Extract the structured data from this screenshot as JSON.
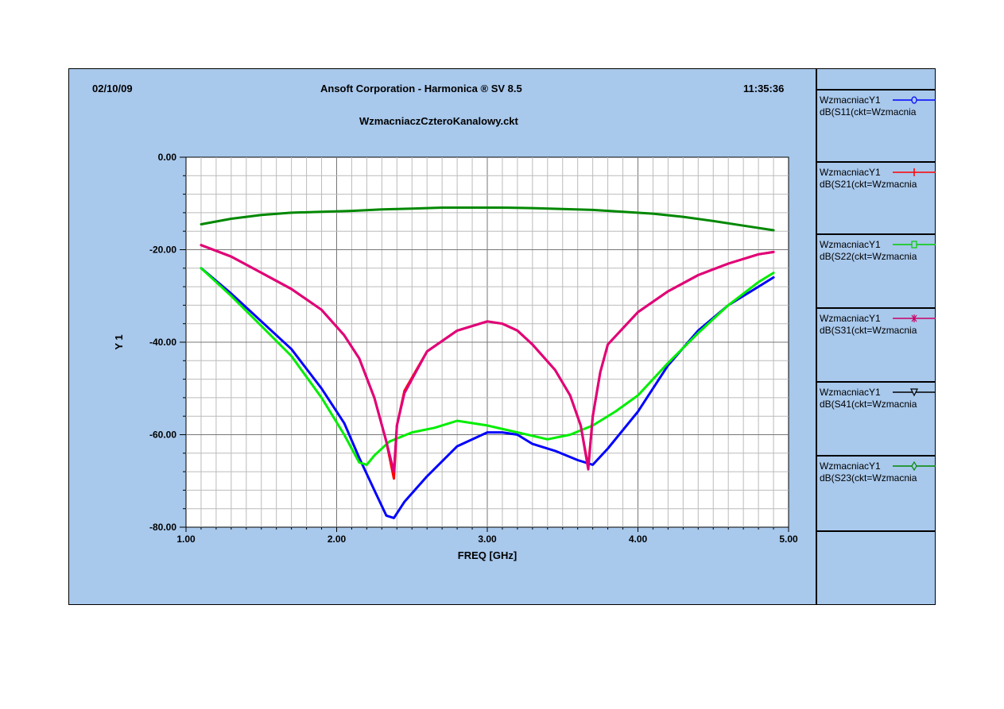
{
  "header": {
    "date": "02/10/09",
    "title": "Ansoft Corporation - Harmonica ® SV 8.5",
    "time": "11:35:36",
    "subtitle": "WzmacniaczCzteroKanalowy.ckt"
  },
  "legend": [
    {
      "line1": "WzmacniacY1",
      "line2": "dB(S11(ckt=Wzmacnia",
      "color": "#0000ff",
      "marker": "circle"
    },
    {
      "line1": "WzmacniacY1",
      "line2": "dB(S21(ckt=Wzmacnia",
      "color": "#ff0000",
      "marker": "tick"
    },
    {
      "line1": "WzmacniacY1",
      "line2": "dB(S22(ckt=Wzmacnia",
      "color": "#00cc00",
      "marker": "square"
    },
    {
      "line1": "WzmacniacY1",
      "line2": "dB(S31(ckt=Wzmacnia",
      "color": "#cc0066",
      "marker": "star"
    },
    {
      "line1": "WzmacniacY1",
      "line2": "dB(S41(ckt=Wzmacnia",
      "color": "#000000",
      "marker": "triangle"
    },
    {
      "line1": "WzmacniacY1",
      "line2": "dB(S23(ckt=Wzmacnia",
      "color": "#008800",
      "marker": "diamond"
    }
  ],
  "chart_data": {
    "type": "line",
    "xlabel": "FREQ [GHz]",
    "ylabel": "Y 1",
    "xlim": [
      1.0,
      5.0
    ],
    "ylim": [
      -80.0,
      0.0
    ],
    "xticks": [
      "1.00",
      "2.00",
      "3.00",
      "4.00",
      "5.00"
    ],
    "yticks": [
      "0.00",
      "-20.00",
      "-40.00",
      "-60.00",
      "-80.00"
    ],
    "grid": true,
    "series": [
      {
        "name": "dB(S11(ckt=Wzmacnia",
        "color": "#0000ff",
        "x": [
          1.1,
          1.3,
          1.5,
          1.7,
          1.9,
          2.05,
          2.15,
          2.25,
          2.33,
          2.38,
          2.45,
          2.6,
          2.8,
          3.0,
          3.1,
          3.2,
          3.3,
          3.45,
          3.6,
          3.7,
          3.8,
          4.0,
          4.2,
          4.4,
          4.6,
          4.8,
          4.9
        ],
        "y": [
          -24,
          -29.5,
          -35.5,
          -41.5,
          -50,
          -57.5,
          -65,
          -72,
          -77.5,
          -78,
          -74.5,
          -69,
          -62.5,
          -59.5,
          -59.5,
          -60,
          -62,
          -63.5,
          -65.5,
          -66.5,
          -63,
          -55,
          -45,
          -37.5,
          -32,
          -28,
          -26
        ]
      },
      {
        "name": "dB(S21(ckt=Wzmacnia",
        "color": "#ff0000",
        "x": [
          1.1,
          1.3,
          1.5,
          1.7,
          1.9,
          2.05,
          2.15,
          2.25,
          2.33,
          2.38,
          2.4,
          2.45,
          2.6,
          2.8,
          3.0,
          3.1,
          3.2,
          3.3,
          3.45,
          3.55,
          3.62,
          3.67,
          3.7,
          3.75,
          3.8,
          4.0,
          4.2,
          4.4,
          4.6,
          4.8,
          4.9
        ],
        "y": [
          -19,
          -21.5,
          -25,
          -28.5,
          -33,
          -38.5,
          -43.5,
          -52,
          -61.5,
          -69.5,
          -58,
          -50.5,
          -42,
          -37.5,
          -35.5,
          -36,
          -37.5,
          -40.5,
          -46,
          -51.5,
          -58,
          -67,
          -56,
          -46.5,
          -40.5,
          -33.5,
          -29,
          -25.5,
          -23,
          -21,
          -20.5
        ]
      },
      {
        "name": "dB(S22(ckt=Wzmacnia",
        "color": "#00ee00",
        "x": [
          1.1,
          1.3,
          1.5,
          1.7,
          1.9,
          2.05,
          2.15,
          2.2,
          2.25,
          2.35,
          2.5,
          2.65,
          2.8,
          3.0,
          3.2,
          3.4,
          3.55,
          3.7,
          3.85,
          4.0,
          4.2,
          4.4,
          4.6,
          4.8,
          4.9
        ],
        "y": [
          -24,
          -30,
          -36.5,
          -43,
          -52,
          -60,
          -66,
          -66.5,
          -64.5,
          -61.5,
          -59.5,
          -58.5,
          -57,
          -58,
          -59.5,
          -61,
          -60,
          -58,
          -55,
          -51.5,
          -44.5,
          -38,
          -32,
          -27,
          -25
        ]
      },
      {
        "name": "dB(S31(ckt=Wzmacnia",
        "color": "#e0007a",
        "x": [
          1.1,
          1.3,
          1.5,
          1.7,
          1.9,
          2.05,
          2.15,
          2.25,
          2.33,
          2.38,
          2.4,
          2.45,
          2.6,
          2.8,
          3.0,
          3.1,
          3.2,
          3.3,
          3.45,
          3.55,
          3.62,
          3.67,
          3.7,
          3.75,
          3.8,
          4.0,
          4.2,
          4.4,
          4.6,
          4.8,
          4.9
        ],
        "y": [
          -19,
          -21.5,
          -25,
          -28.5,
          -33,
          -38.5,
          -43.5,
          -52,
          -61.5,
          -68,
          -58,
          -51,
          -42,
          -37.5,
          -35.5,
          -36,
          -37.5,
          -40.5,
          -46,
          -51.5,
          -58,
          -67.5,
          -56,
          -46.5,
          -40.5,
          -33.5,
          -29,
          -25.5,
          -23,
          -21,
          -20.5
        ]
      },
      {
        "name": "dB(S23(ckt=Wzmacnia",
        "color": "#008800",
        "x": [
          1.1,
          1.3,
          1.5,
          1.7,
          1.9,
          2.1,
          2.3,
          2.5,
          2.7,
          2.9,
          3.1,
          3.3,
          3.5,
          3.7,
          3.9,
          4.1,
          4.3,
          4.5,
          4.7,
          4.9
        ],
        "y": [
          -14.5,
          -13.3,
          -12.5,
          -12,
          -11.8,
          -11.6,
          -11.3,
          -11.1,
          -10.9,
          -10.9,
          -10.9,
          -11,
          -11.2,
          -11.4,
          -11.8,
          -12.2,
          -12.9,
          -13.8,
          -14.8,
          -15.8
        ]
      }
    ]
  }
}
